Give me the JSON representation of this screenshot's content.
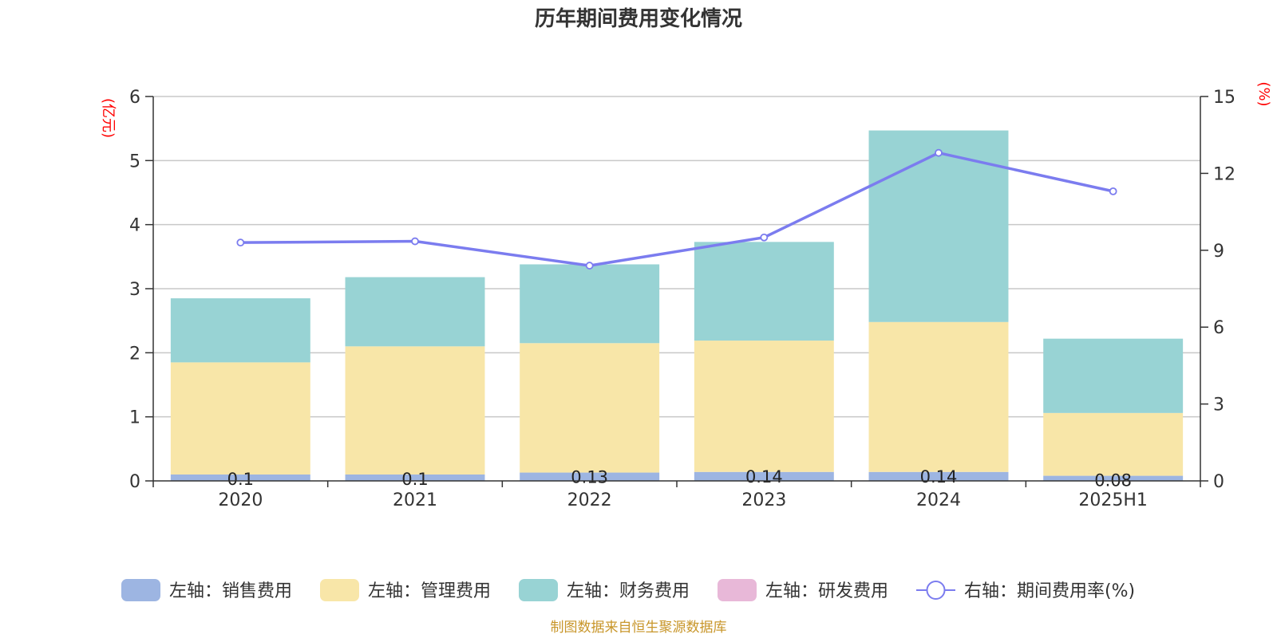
{
  "chart_data": {
    "type": "bar",
    "title": "历年期间费用变化情况",
    "categories": [
      "2020",
      "2021",
      "2022",
      "2023",
      "2024",
      "2025H1"
    ],
    "left_axis": {
      "unit": "(亿元)",
      "ylim": [
        0,
        6
      ],
      "ticks": [
        "0",
        "1",
        "2",
        "3",
        "4",
        "5",
        "6"
      ]
    },
    "right_axis": {
      "unit": "(%)",
      "ylim": [
        0,
        15
      ],
      "ticks": [
        "0",
        "3",
        "6",
        "9",
        "12",
        "15"
      ]
    },
    "stacked": true,
    "series": [
      {
        "name": "左轴：销售费用",
        "axis": "left",
        "type": "bar",
        "color": "#9db5e2",
        "values": [
          0.1,
          0.1,
          0.13,
          0.14,
          0.14,
          0.08
        ],
        "labels": [
          "0.1",
          "0.1",
          "0.13",
          "0.14",
          "0.14",
          "0.08"
        ]
      },
      {
        "name": "左轴：管理费用",
        "axis": "left",
        "type": "bar",
        "color": "#f8e6a8",
        "values": [
          1.75,
          2.0,
          2.02,
          2.05,
          2.34,
          0.98
        ]
      },
      {
        "name": "左轴：财务费用",
        "axis": "left",
        "type": "bar",
        "color": "#98d3d4",
        "values": [
          1.0,
          1.08,
          1.23,
          1.54,
          2.99,
          1.16
        ]
      },
      {
        "name": "左轴：研发费用",
        "axis": "left",
        "type": "bar",
        "color": "#e8b8d8",
        "values": [
          0,
          0,
          0,
          0,
          0,
          0
        ]
      },
      {
        "name": "右轴：期间费用率(%)",
        "axis": "right",
        "type": "line",
        "color": "#7b7cef",
        "values": [
          9.3,
          9.35,
          8.4,
          9.5,
          12.8,
          11.3
        ]
      }
    ],
    "grid": true,
    "legend_position": "bottom",
    "source_note": "制图数据来自恒生聚源数据库"
  }
}
